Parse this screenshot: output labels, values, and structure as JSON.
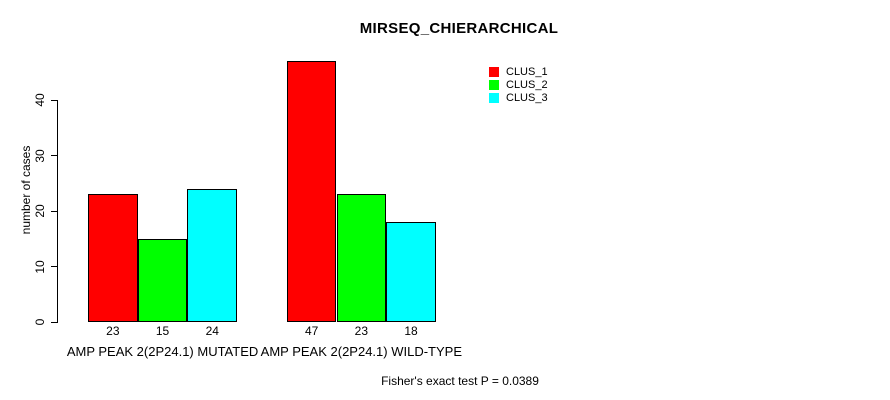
{
  "title": "MIRSEQ_CHIERARCHICAL",
  "annotation": "Fisher's exact test P = 0.0389",
  "chart_data": {
    "type": "bar",
    "title": "MIRSEQ_CHIERARCHICAL",
    "xlabel": "",
    "ylabel": "number of cases",
    "ylim": [
      0,
      47
    ],
    "yticks": [
      0,
      10,
      20,
      30,
      40
    ],
    "grid": false,
    "legend_position": "top-right",
    "categories": [
      "AMP PEAK 2(2P24.1) MUTATED",
      "AMP PEAK 2(2P24.1) WILD-TYPE"
    ],
    "series": [
      {
        "name": "CLUS_1",
        "color": "#ff0000",
        "values": [
          23,
          47
        ]
      },
      {
        "name": "CLUS_2",
        "color": "#00ff00",
        "values": [
          15,
          23
        ]
      },
      {
        "name": "CLUS_3",
        "color": "#00ffff",
        "values": [
          24,
          18
        ]
      }
    ],
    "bar_value_labels": [
      [
        23,
        15,
        24
      ],
      [
        47,
        23,
        18
      ]
    ],
    "annotation": "Fisher's exact test P = 0.0389"
  }
}
